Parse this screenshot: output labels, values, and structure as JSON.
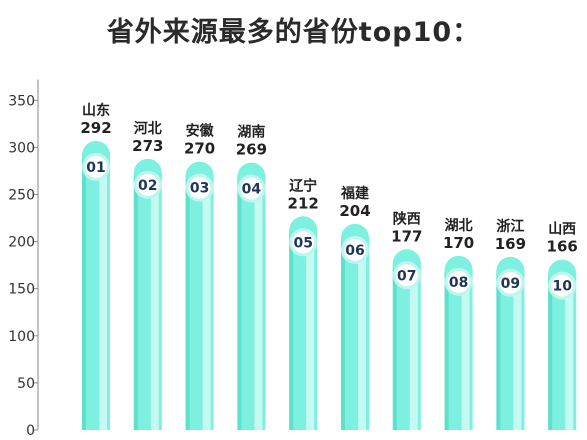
{
  "title": "省外来源最多的省份top10：",
  "chart_data": {
    "type": "bar",
    "title": "省外来源最多的省份top10：",
    "categories": [
      "山东",
      "河北",
      "安徽",
      "湖南",
      "辽宁",
      "福建",
      "陕西",
      "湖北",
      "浙江",
      "山西"
    ],
    "ranks": [
      "01",
      "02",
      "03",
      "04",
      "05",
      "06",
      "07",
      "08",
      "09",
      "10"
    ],
    "values": [
      292,
      273,
      270,
      269,
      212,
      204,
      177,
      170,
      169,
      166
    ],
    "y_ticks": [
      0,
      50,
      100,
      150,
      200,
      250,
      300,
      350
    ],
    "ylim": [
      0,
      370
    ],
    "xlabel": "",
    "ylabel": "",
    "grid": false,
    "colors": {
      "bar": "#7ef0e0",
      "bar_highlight": "#c4faf2",
      "bar_shadow": "#5fe0cc",
      "badge_ring": "#bdf6ee",
      "axis": "#888888"
    }
  }
}
